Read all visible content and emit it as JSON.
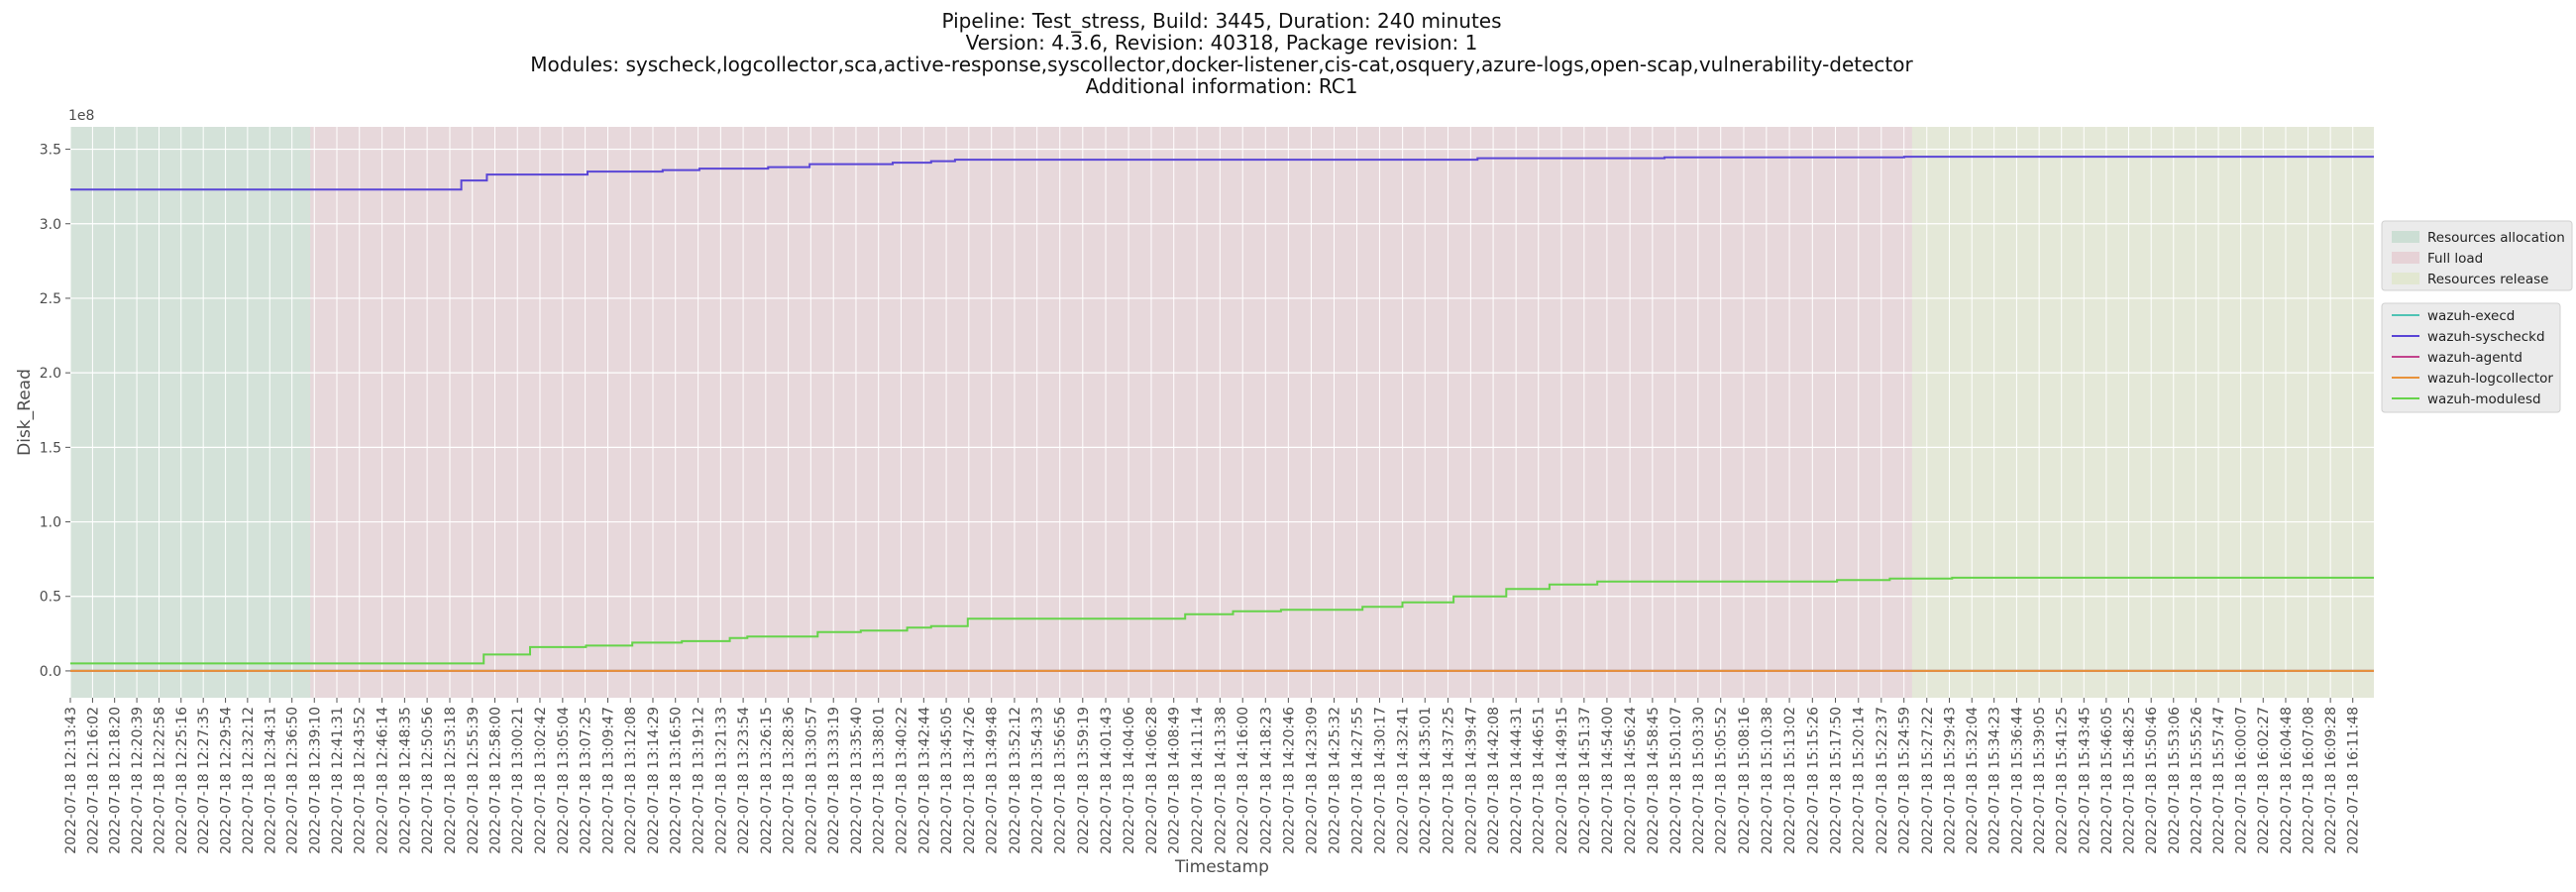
{
  "title": {
    "lines": [
      "Pipeline: Test_stress, Build: 3445, Duration: 240 minutes",
      "Version: 4.3.6, Revision: 40318, Package revision: 1",
      "Modules: syscheck,logcollector,sca,active-response,syscollector,docker-listener,cis-cat,osquery,azure-logs,open-scap,vulnerability-detector",
      "Additional information: RC1"
    ]
  },
  "chart_data": {
    "type": "line",
    "step": true,
    "xlabel": "Timestamp",
    "ylabel": "Disk_Read",
    "y_offset_label": "1e8",
    "y_scale": 100000000,
    "ylim": [
      -0.18,
      3.65
    ],
    "xlim": [
      "2022-07-18 12:13:43",
      "2022-07-18 16:14:00"
    ],
    "grid": true,
    "background": "#ebebeb",
    "yticks": [
      0.0,
      0.5,
      1.0,
      1.5,
      2.0,
      2.5,
      3.0,
      3.5
    ],
    "ytick_labels": [
      "0.0",
      "0.5",
      "1.0",
      "1.5",
      "2.0",
      "2.5",
      "3.0",
      "3.5"
    ],
    "xticks": [
      "2022-07-18 12:13:43",
      "2022-07-18 12:16:02",
      "2022-07-18 12:18:20",
      "2022-07-18 12:20:39",
      "2022-07-18 12:22:58",
      "2022-07-18 12:25:16",
      "2022-07-18 12:27:35",
      "2022-07-18 12:29:54",
      "2022-07-18 12:32:12",
      "2022-07-18 12:34:31",
      "2022-07-18 12:36:50",
      "2022-07-18 12:39:10",
      "2022-07-18 12:41:31",
      "2022-07-18 12:43:52",
      "2022-07-18 12:46:14",
      "2022-07-18 12:48:35",
      "2022-07-18 12:50:56",
      "2022-07-18 12:53:18",
      "2022-07-18 12:55:39",
      "2022-07-18 12:58:00",
      "2022-07-18 13:00:21",
      "2022-07-18 13:02:42",
      "2022-07-18 13:05:04",
      "2022-07-18 13:07:25",
      "2022-07-18 13:09:47",
      "2022-07-18 13:12:08",
      "2022-07-18 13:14:29",
      "2022-07-18 13:16:50",
      "2022-07-18 13:19:12",
      "2022-07-18 13:21:33",
      "2022-07-18 13:23:54",
      "2022-07-18 13:26:15",
      "2022-07-18 13:28:36",
      "2022-07-18 13:30:57",
      "2022-07-18 13:33:19",
      "2022-07-18 13:35:40",
      "2022-07-18 13:38:01",
      "2022-07-18 13:40:22",
      "2022-07-18 13:42:44",
      "2022-07-18 13:45:05",
      "2022-07-18 13:47:26",
      "2022-07-18 13:49:48",
      "2022-07-18 13:52:12",
      "2022-07-18 13:54:33",
      "2022-07-18 13:56:56",
      "2022-07-18 13:59:19",
      "2022-07-18 14:01:43",
      "2022-07-18 14:04:06",
      "2022-07-18 14:06:28",
      "2022-07-18 14:08:49",
      "2022-07-18 14:11:14",
      "2022-07-18 14:13:38",
      "2022-07-18 14:16:00",
      "2022-07-18 14:18:23",
      "2022-07-18 14:20:46",
      "2022-07-18 14:23:09",
      "2022-07-18 14:25:32",
      "2022-07-18 14:27:55",
      "2022-07-18 14:30:17",
      "2022-07-18 14:32:41",
      "2022-07-18 14:35:01",
      "2022-07-18 14:37:25",
      "2022-07-18 14:39:47",
      "2022-07-18 14:42:08",
      "2022-07-18 14:44:31",
      "2022-07-18 14:46:51",
      "2022-07-18 14:49:15",
      "2022-07-18 14:51:37",
      "2022-07-18 14:54:00",
      "2022-07-18 14:56:24",
      "2022-07-18 14:58:45",
      "2022-07-18 15:01:07",
      "2022-07-18 15:03:30",
      "2022-07-18 15:05:52",
      "2022-07-18 15:08:16",
      "2022-07-18 15:10:38",
      "2022-07-18 15:13:02",
      "2022-07-18 15:15:26",
      "2022-07-18 15:17:50",
      "2022-07-18 15:20:14",
      "2022-07-18 15:22:37",
      "2022-07-18 15:24:59",
      "2022-07-18 15:27:22",
      "2022-07-18 15:29:43",
      "2022-07-18 15:32:04",
      "2022-07-18 15:34:23",
      "2022-07-18 15:36:44",
      "2022-07-18 15:39:05",
      "2022-07-18 15:41:25",
      "2022-07-18 15:43:45",
      "2022-07-18 15:46:05",
      "2022-07-18 15:48:25",
      "2022-07-18 15:50:46",
      "2022-07-18 15:53:06",
      "2022-07-18 15:55:26",
      "2022-07-18 15:57:47",
      "2022-07-18 16:00:07",
      "2022-07-18 16:02:27",
      "2022-07-18 16:04:48",
      "2022-07-18 16:07:08",
      "2022-07-18 16:09:28",
      "2022-07-18 16:11:48"
    ],
    "phases": [
      {
        "name": "Resources allocation",
        "start": "2022-07-18 12:13:43",
        "end": "2022-07-18 12:38:45",
        "color": "#b8d6c4"
      },
      {
        "name": "Full load",
        "start": "2022-07-18 12:38:45",
        "end": "2022-07-18 15:25:50",
        "color": "#e3c2c8"
      },
      {
        "name": "Resources release",
        "start": "2022-07-18 15:25:50",
        "end": "2022-07-18 16:14:00",
        "color": "#dce4c0"
      }
    ],
    "series": [
      {
        "name": "wazuh-execd",
        "color": "#4fc3b4",
        "x": [
          "2022-07-18 12:13:43",
          "2022-07-18 16:14:00"
        ],
        "y": [
          0.0,
          0.0
        ]
      },
      {
        "name": "wazuh-syscheckd",
        "color": "#5a45d6",
        "x": [
          "2022-07-18 12:13:43",
          "2022-07-18 12:54:30",
          "2022-07-18 12:57:10",
          "2022-07-18 13:07:40",
          "2022-07-18 13:15:30",
          "2022-07-18 13:19:20",
          "2022-07-18 13:26:30",
          "2022-07-18 13:30:50",
          "2022-07-18 13:39:30",
          "2022-07-18 13:43:30",
          "2022-07-18 13:46:00",
          "2022-07-18 14:40:30",
          "2022-07-18 15:00:00",
          "2022-07-18 15:25:00",
          "2022-07-18 16:14:00"
        ],
        "y": [
          3.23,
          3.29,
          3.33,
          3.35,
          3.36,
          3.37,
          3.38,
          3.4,
          3.41,
          3.42,
          3.43,
          3.44,
          3.445,
          3.45,
          3.45
        ]
      },
      {
        "name": "wazuh-agentd",
        "color": "#c2428c",
        "x": [
          "2022-07-18 12:13:43",
          "2022-07-18 16:14:00"
        ],
        "y": [
          0.0,
          0.0
        ]
      },
      {
        "name": "wazuh-logcollector",
        "color": "#e8923a",
        "x": [
          "2022-07-18 12:13:43",
          "2022-07-18 16:14:00"
        ],
        "y": [
          0.0,
          0.0
        ]
      },
      {
        "name": "wazuh-modulesd",
        "color": "#66d34a",
        "x": [
          "2022-07-18 12:13:43",
          "2022-07-18 12:56:50",
          "2022-07-18 13:01:40",
          "2022-07-18 13:07:30",
          "2022-07-18 13:12:20",
          "2022-07-18 13:17:30",
          "2022-07-18 13:22:30",
          "2022-07-18 13:24:20",
          "2022-07-18 13:31:40",
          "2022-07-18 13:36:10",
          "2022-07-18 13:41:00",
          "2022-07-18 13:43:30",
          "2022-07-18 13:47:20",
          "2022-07-18 14:10:00",
          "2022-07-18 14:15:00",
          "2022-07-18 14:20:00",
          "2022-07-18 14:28:30",
          "2022-07-18 14:32:40",
          "2022-07-18 14:38:00",
          "2022-07-18 14:43:30",
          "2022-07-18 14:48:00",
          "2022-07-18 14:53:00",
          "2022-07-18 15:18:00",
          "2022-07-18 15:23:30",
          "2022-07-18 15:30:00",
          "2022-07-18 16:14:00"
        ],
        "y": [
          0.05,
          0.11,
          0.16,
          0.17,
          0.19,
          0.2,
          0.22,
          0.23,
          0.26,
          0.27,
          0.29,
          0.3,
          0.35,
          0.38,
          0.4,
          0.41,
          0.43,
          0.46,
          0.5,
          0.55,
          0.58,
          0.6,
          0.61,
          0.62,
          0.625,
          0.625
        ]
      }
    ],
    "legend_phases_position": "upper right, outside plot",
    "legend_series_position": "right, outside plot"
  }
}
